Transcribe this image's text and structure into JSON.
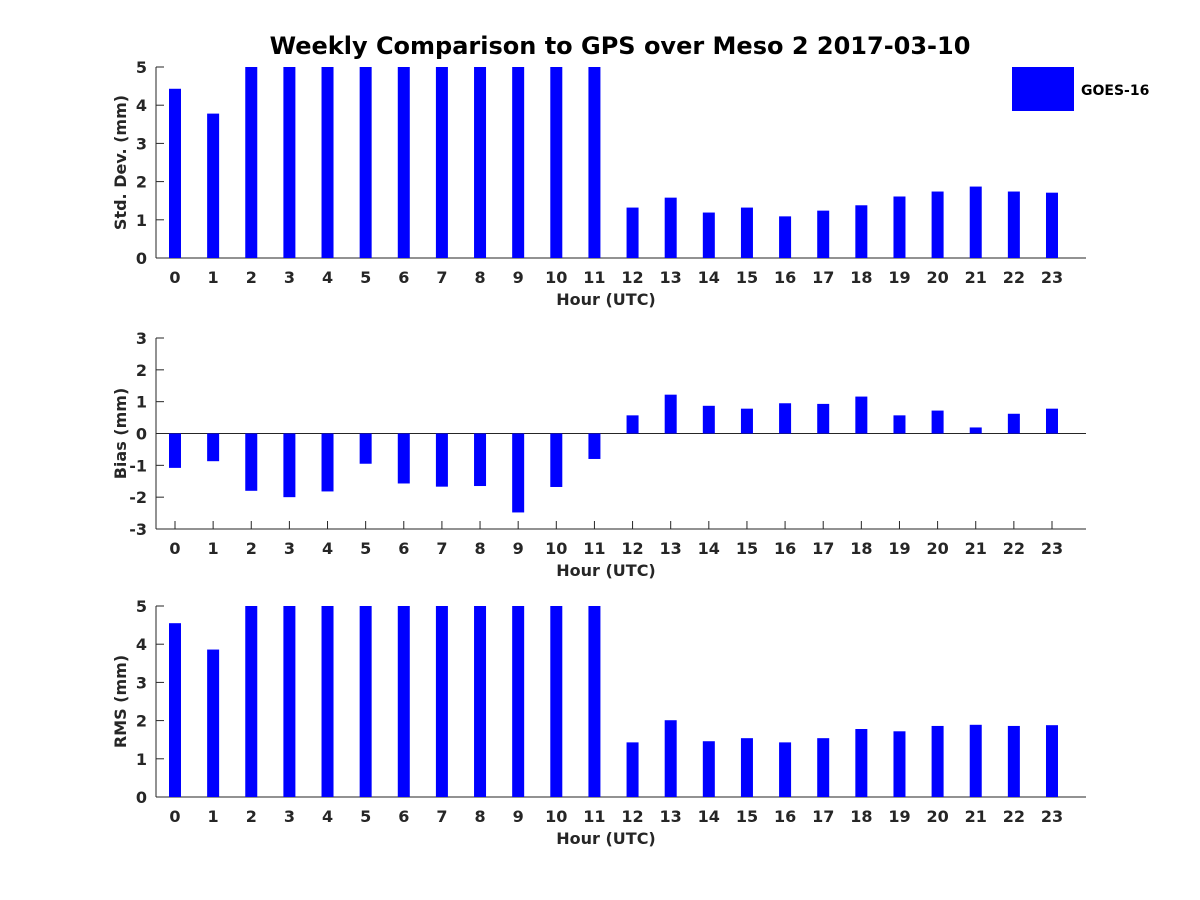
{
  "chart_data": {
    "title": "Weekly Comparison to GPS over Meso 2 2017-03-10",
    "legend": {
      "label": "GOES-16",
      "color": "#0000ff",
      "placement": "top-right"
    },
    "panels": [
      {
        "type": "bar",
        "xlabel": "Hour (UTC)",
        "ylabel": "Std. Dev. (mm)",
        "ylim": [
          0,
          5
        ],
        "yticks": [
          0,
          1,
          2,
          3,
          4,
          5
        ],
        "categories": [
          "0",
          "1",
          "2",
          "3",
          "4",
          "5",
          "6",
          "7",
          "8",
          "9",
          "10",
          "11",
          "12",
          "13",
          "14",
          "15",
          "16",
          "17",
          "18",
          "19",
          "20",
          "21",
          "22",
          "23"
        ],
        "series": [
          {
            "name": "GOES-16",
            "values": [
              4.43,
              3.78,
              5.0,
              5.0,
              5.0,
              5.0,
              5.0,
              5.0,
              5.0,
              5.0,
              5.0,
              5.0,
              1.32,
              1.58,
              1.19,
              1.32,
              1.09,
              1.24,
              1.38,
              1.61,
              1.74,
              1.87,
              1.74,
              1.71
            ]
          }
        ]
      },
      {
        "type": "bar",
        "xlabel": "Hour (UTC)",
        "ylabel": "Bias (mm)",
        "ylim": [
          -3,
          3
        ],
        "yticks": [
          -3,
          -2,
          -1,
          0,
          1,
          2,
          3
        ],
        "categories": [
          "0",
          "1",
          "2",
          "3",
          "4",
          "5",
          "6",
          "7",
          "8",
          "9",
          "10",
          "11",
          "12",
          "13",
          "14",
          "15",
          "16",
          "17",
          "18",
          "19",
          "20",
          "21",
          "22",
          "23"
        ],
        "series": [
          {
            "name": "GOES-16",
            "values": [
              -1.08,
              -0.87,
              -1.8,
              -2.0,
              -1.82,
              -0.95,
              -1.57,
              -1.67,
              -1.65,
              -2.48,
              -1.68,
              -0.8,
              0.57,
              1.22,
              0.87,
              0.78,
              0.95,
              0.93,
              1.16,
              0.57,
              0.72,
              0.19,
              0.62,
              0.78
            ]
          }
        ]
      },
      {
        "type": "bar",
        "xlabel": "Hour (UTC)",
        "ylabel": "RMS (mm)",
        "ylim": [
          0,
          5
        ],
        "yticks": [
          0,
          1,
          2,
          3,
          4,
          5
        ],
        "categories": [
          "0",
          "1",
          "2",
          "3",
          "4",
          "5",
          "6",
          "7",
          "8",
          "9",
          "10",
          "11",
          "12",
          "13",
          "14",
          "15",
          "16",
          "17",
          "18",
          "19",
          "20",
          "21",
          "22",
          "23"
        ],
        "series": [
          {
            "name": "GOES-16",
            "values": [
              4.55,
              3.86,
              5.0,
              5.0,
              5.0,
              5.0,
              5.0,
              5.0,
              5.0,
              5.0,
              5.0,
              5.0,
              1.43,
              2.01,
              1.46,
              1.54,
              1.43,
              1.54,
              1.78,
              1.72,
              1.86,
              1.89,
              1.86,
              1.88
            ]
          }
        ]
      }
    ]
  }
}
